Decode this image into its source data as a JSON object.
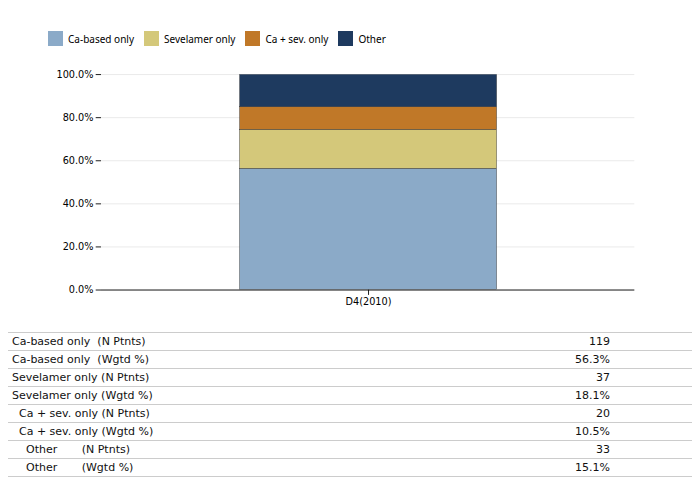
{
  "chart_data": {
    "type": "bar",
    "stacked": true,
    "categories": [
      "D4(2010)"
    ],
    "series": [
      {
        "name": "Ca-based only",
        "color": "#8baac8",
        "values": [
          56.3
        ]
      },
      {
        "name": "Sevelamer only",
        "color": "#d4c87a",
        "values": [
          18.1
        ]
      },
      {
        "name": "Ca + sev. only",
        "color": "#c07828",
        "values": [
          10.5
        ]
      },
      {
        "name": "Other",
        "color": "#1e3a5f",
        "values": [
          15.1
        ]
      }
    ],
    "ylim": [
      0,
      100
    ],
    "yticks": [
      {
        "value": 0,
        "label": "0.0%"
      },
      {
        "value": 20,
        "label": "20.0%"
      },
      {
        "value": 40,
        "label": "40.0%"
      },
      {
        "value": 60,
        "label": "60.0%"
      },
      {
        "value": 80,
        "label": "80.0%"
      },
      {
        "value": 100,
        "label": "100.0%"
      }
    ],
    "grid": true,
    "legend": "top",
    "table": {
      "labels": [
        "Ca-based only  (N Ptnts)",
        "Ca-based only  (Wgtd %)",
        "Sevelamer only (N Ptnts)",
        "Sevelamer only (Wgtd %)",
        "  Ca + sev. only (N Ptnts)",
        "  Ca + sev. only (Wgtd %)",
        "    Other       (N Ptnts)",
        "    Other       (Wgtd %)"
      ],
      "values": [
        119,
        56.3,
        37,
        18.1,
        20,
        10.5,
        33,
        15.1
      ],
      "value_labels": [
        "119",
        "56.3%",
        "37",
        "18.1%",
        "20",
        "10.5%",
        "33",
        "15.1%"
      ]
    }
  }
}
